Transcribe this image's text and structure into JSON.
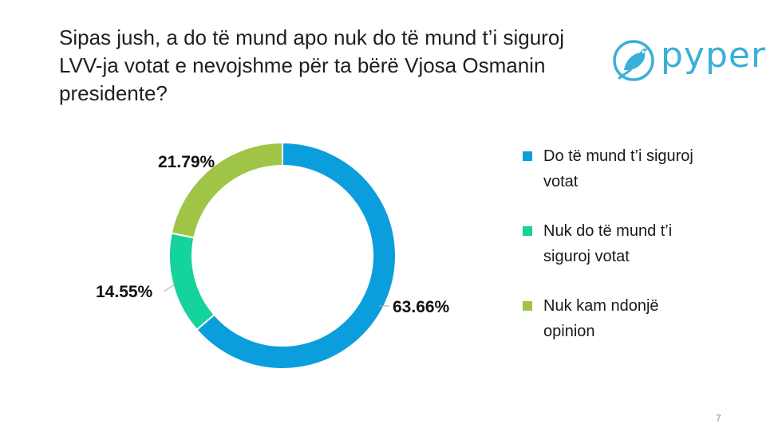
{
  "slide": {
    "title_lines": [
      "Sipas jush, a do të mund apo nuk do të mund t’i siguroj",
      "LVV-ja votat e nevojshme për ta bërë Vjosa Osmanin",
      "presidente?"
    ],
    "logo_text": "pyper",
    "page_number": "7"
  },
  "colors": {
    "series1": "#0a9fdc",
    "series2": "#14d39b",
    "series3": "#9fc446",
    "logo": "#3ab0d8"
  },
  "chart_data": {
    "type": "pie",
    "title": "Sipas jush, a do të mund apo nuk do të mund t’i siguroj LVV-ja votat e nevojshme për ta bërë Vjosa Osmanin presidente?",
    "slices": [
      {
        "name": "Do të mund t’i siguroj votat",
        "value": 63.66,
        "label": "63.66%",
        "legend_lines": [
          "Do të mund t’i siguroj",
          "votat"
        ]
      },
      {
        "name": "Nuk do të mund t’i siguroj votat",
        "value": 14.55,
        "label": "14.55%",
        "legend_lines": [
          "Nuk do të mund t’i",
          "siguroj votat"
        ]
      },
      {
        "name": "Nuk kam ndonjë opinion",
        "value": 21.79,
        "label": "21.79%",
        "legend_lines": [
          "Nuk kam ndonjë",
          "opinion"
        ]
      }
    ],
    "donut": true,
    "legend_position": "right"
  }
}
